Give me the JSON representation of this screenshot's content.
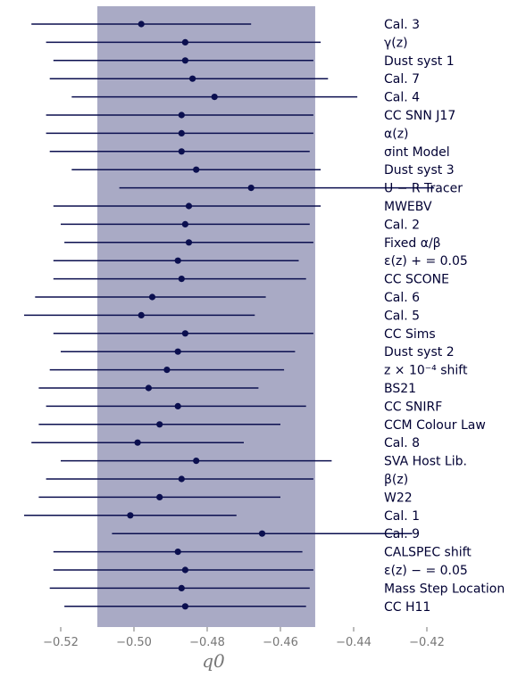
{
  "chart_data": {
    "type": "scatter",
    "xlabel": "q0",
    "xlim": [
      -0.532,
      -0.418
    ],
    "x_ticks": [
      "−0.52",
      "−0.50",
      "−0.48",
      "−0.46",
      "−0.44",
      "−0.42"
    ],
    "x_tick_values": [
      -0.52,
      -0.5,
      -0.48,
      -0.46,
      -0.44,
      -0.42
    ],
    "band": {
      "from": -0.51,
      "to": -0.4505,
      "color": "#a9aac5"
    },
    "colors": {
      "point": "#0b0f4f",
      "line": "#0b0f4f",
      "label": "#000033",
      "tick": "#777777"
    },
    "series": [
      {
        "label": "Cal. 3",
        "x": -0.498,
        "lo": -0.528,
        "hi": -0.468
      },
      {
        "label": "γ(z)",
        "x": -0.486,
        "lo": -0.524,
        "hi": -0.449
      },
      {
        "label": "Dust syst 1",
        "x": -0.486,
        "lo": -0.522,
        "hi": -0.451
      },
      {
        "label": "Cal. 7",
        "x": -0.484,
        "lo": -0.523,
        "hi": -0.447
      },
      {
        "label": "Cal. 4",
        "x": -0.478,
        "lo": -0.517,
        "hi": -0.439
      },
      {
        "label": "CC SNN J17",
        "x": -0.487,
        "lo": -0.524,
        "hi": -0.451
      },
      {
        "label": "α(z)",
        "x": -0.487,
        "lo": -0.524,
        "hi": -0.451
      },
      {
        "label": "σint Model",
        "x": -0.487,
        "lo": -0.523,
        "hi": -0.452
      },
      {
        "label": "Dust syst 3",
        "x": -0.483,
        "lo": -0.517,
        "hi": -0.449
      },
      {
        "label": "U − R Tracer",
        "x": -0.468,
        "lo": -0.504,
        "hi": -0.418
      },
      {
        "label": "MWEBV",
        "x": -0.485,
        "lo": -0.522,
        "hi": -0.449
      },
      {
        "label": "Cal. 2",
        "x": -0.486,
        "lo": -0.52,
        "hi": -0.452
      },
      {
        "label": "Fixed α/β",
        "x": -0.485,
        "lo": -0.519,
        "hi": -0.451
      },
      {
        "label": "ε(z) + = 0.05",
        "x": -0.488,
        "lo": -0.522,
        "hi": -0.455
      },
      {
        "label": "CC SCONE",
        "x": -0.487,
        "lo": -0.522,
        "hi": -0.453
      },
      {
        "label": "Cal. 6",
        "x": -0.495,
        "lo": -0.527,
        "hi": -0.464
      },
      {
        "label": "Cal. 5",
        "x": -0.498,
        "lo": -0.53,
        "hi": -0.467
      },
      {
        "label": "CC Sims",
        "x": -0.486,
        "lo": -0.522,
        "hi": -0.451
      },
      {
        "label": "Dust syst 2",
        "x": -0.488,
        "lo": -0.52,
        "hi": -0.456
      },
      {
        "label": "z × 10⁻⁴ shift",
        "x": -0.491,
        "lo": -0.523,
        "hi": -0.459
      },
      {
        "label": "BS21",
        "x": -0.496,
        "lo": -0.526,
        "hi": -0.466
      },
      {
        "label": "CC SNIRF",
        "x": -0.488,
        "lo": -0.524,
        "hi": -0.453
      },
      {
        "label": "CCM Colour Law",
        "x": -0.493,
        "lo": -0.526,
        "hi": -0.46
      },
      {
        "label": "Cal. 8",
        "x": -0.499,
        "lo": -0.528,
        "hi": -0.47
      },
      {
        "label": "SVA Host Lib.",
        "x": -0.483,
        "lo": -0.52,
        "hi": -0.446
      },
      {
        "label": "β(z)",
        "x": -0.487,
        "lo": -0.524,
        "hi": -0.451
      },
      {
        "label": "W22",
        "x": -0.493,
        "lo": -0.526,
        "hi": -0.46
      },
      {
        "label": "Cal. 1",
        "x": -0.501,
        "lo": -0.53,
        "hi": -0.472
      },
      {
        "label": "Cal. 9",
        "x": -0.465,
        "lo": -0.506,
        "hi": -0.424
      },
      {
        "label": "CALSPEC shift",
        "x": -0.488,
        "lo": -0.522,
        "hi": -0.454
      },
      {
        "label": "ε(z) − = 0.05",
        "x": -0.486,
        "lo": -0.522,
        "hi": -0.451
      },
      {
        "label": "Mass Step Location",
        "x": -0.487,
        "lo": -0.523,
        "hi": -0.452
      },
      {
        "label": "CC H11",
        "x": -0.486,
        "lo": -0.519,
        "hi": -0.453
      }
    ]
  }
}
